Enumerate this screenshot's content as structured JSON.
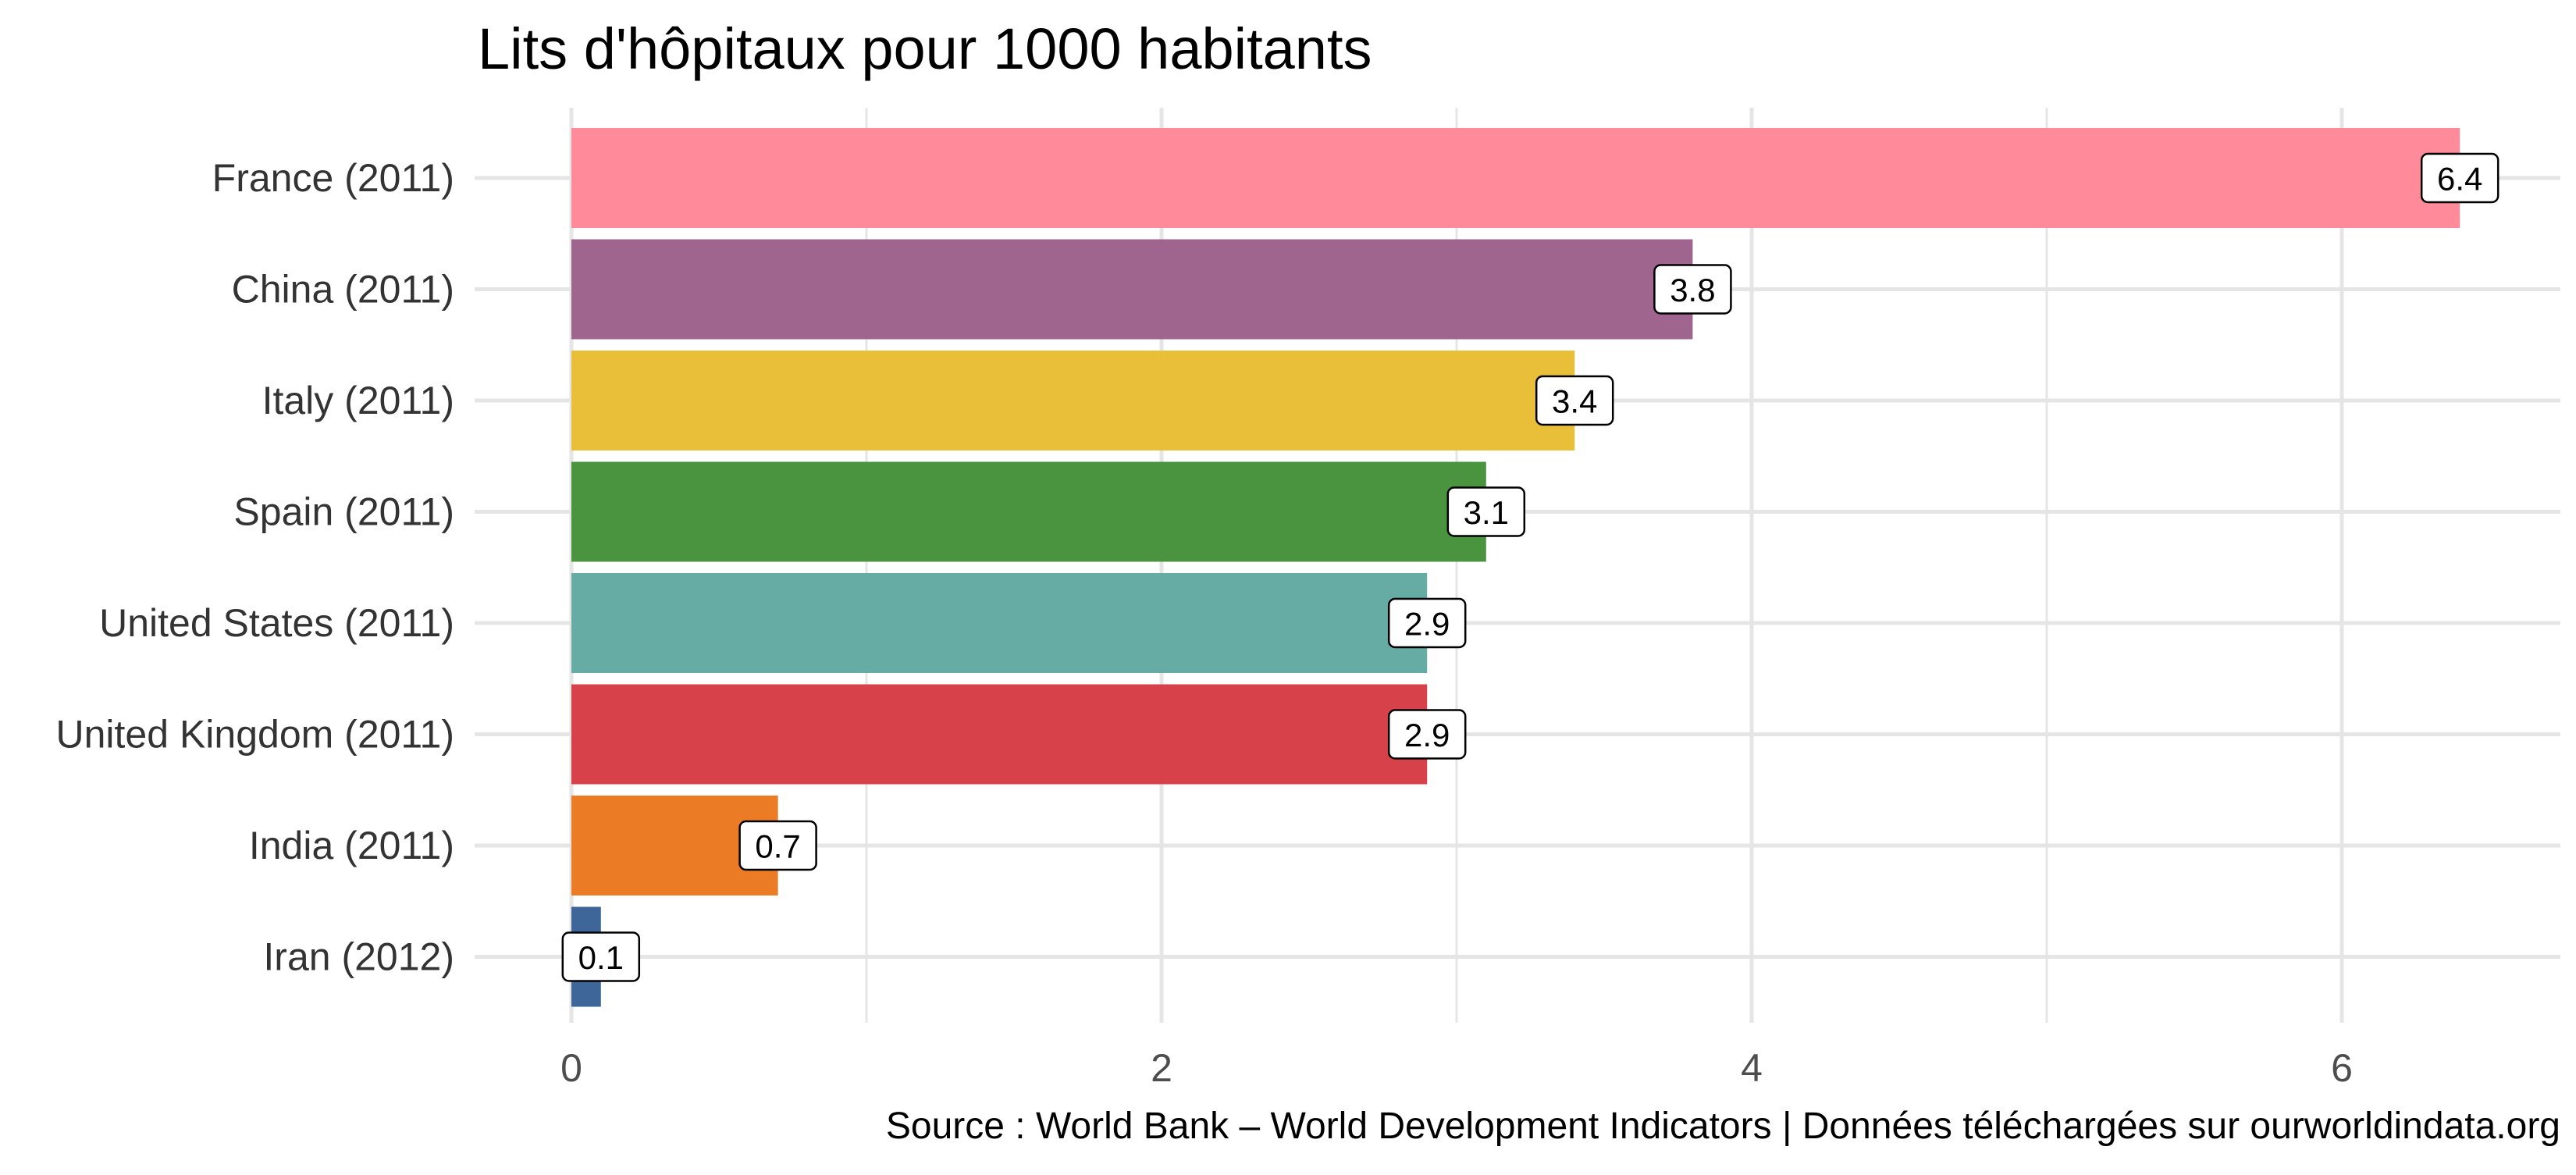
{
  "chart_data": {
    "type": "bar",
    "orientation": "horizontal",
    "title": "Lits d'hôpitaux pour 1000 habitants",
    "caption": "Source : World Bank – World Development Indicators | Données téléchargées sur ourworldindata.org",
    "xlabel": "",
    "ylabel": "",
    "xlim": [
      0,
      6.7
    ],
    "x_ticks": [
      0,
      2,
      4,
      6
    ],
    "grid": true,
    "legend": "none",
    "categories": [
      "France (2011)",
      "China (2011)",
      "Italy (2011)",
      "Spain (2011)",
      "United States (2011)",
      "United Kingdom (2011)",
      "India (2011)",
      "Iran (2012)"
    ],
    "values": [
      6.4,
      3.8,
      3.4,
      3.1,
      2.9,
      2.9,
      0.7,
      0.1
    ],
    "data_labels": [
      "6.4",
      "3.8",
      "3.4",
      "3.1",
      "2.9",
      "2.9",
      "0.7",
      "0.1"
    ],
    "colors": [
      "#FF8A99",
      "#A0658E",
      "#E9BF39",
      "#4A943F",
      "#67ABA5",
      "#D7414A",
      "#EC7B26",
      "#3F6698"
    ]
  },
  "style": {
    "gridline_color": "#E5E5E5",
    "background": "#FFFFFF"
  }
}
